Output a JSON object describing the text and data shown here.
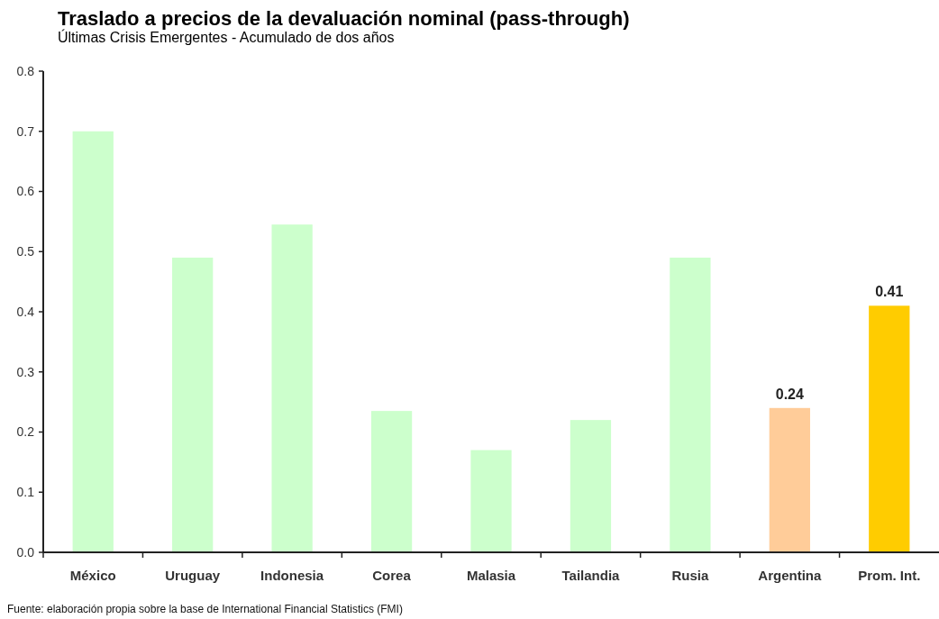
{
  "chart_data": {
    "type": "bar",
    "title": "Traslado a precios de la devaluación nominal (pass-through)",
    "subtitle": "Últimas Crisis Emergentes - Acumulado de dos años",
    "annotations": [
      "Fuente: elaboración propia sobre la base de International Financial Statistics (FMI)"
    ],
    "categories": [
      "México",
      "Uruguay",
      "Indonesia",
      "Corea",
      "Malasia",
      "Tailandia",
      "Rusia",
      "Argentina",
      "Prom. Int."
    ],
    "values": [
      0.7,
      0.49,
      0.545,
      0.235,
      0.17,
      0.22,
      0.49,
      0.24,
      0.41
    ],
    "colors": [
      "#ccffcc",
      "#ccffcc",
      "#ccffcc",
      "#ccffcc",
      "#ccffcc",
      "#ccffcc",
      "#ccffcc",
      "#ffcc99",
      "#ffcc00"
    ],
    "value_labels": [
      null,
      null,
      null,
      null,
      null,
      null,
      null,
      "0.24",
      "0.41"
    ],
    "ylim": [
      0,
      0.8
    ],
    "yticks": [
      {
        "value": 0,
        "label": "0.0"
      },
      0.1,
      0.2,
      0.3,
      0.4,
      0.5,
      0.6,
      0.7,
      0.8
    ]
  }
}
